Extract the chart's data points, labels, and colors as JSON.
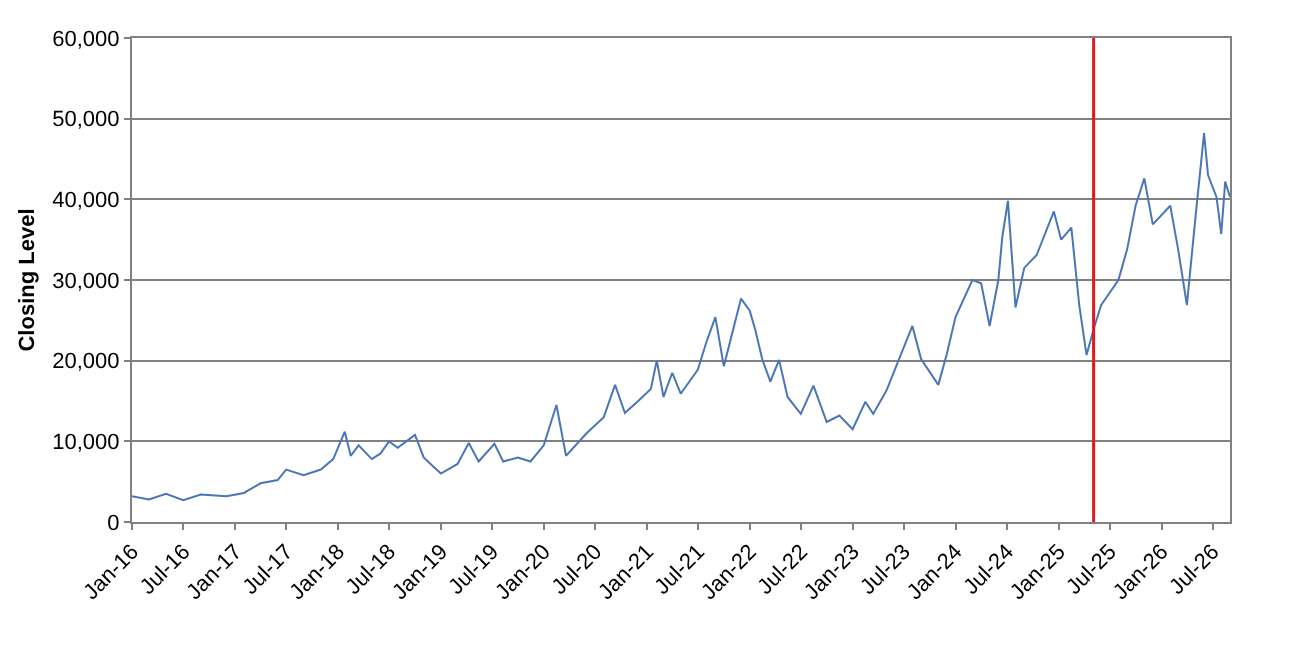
{
  "chart_data": {
    "type": "line",
    "ylabel": "Closing Level",
    "grid": "y",
    "marker": "none",
    "line_style": "solid",
    "x": [
      "2016-01-01",
      "2016-03-01",
      "2016-05-01",
      "2016-07-01",
      "2016-09-01",
      "2016-12-01",
      "2017-02-01",
      "2017-04-01",
      "2017-06-01",
      "2017-07-01",
      "2017-09-01",
      "2017-11-01",
      "2017-12-15",
      "2018-01-25",
      "2018-02-15",
      "2018-03-15",
      "2018-05-01",
      "2018-06-01",
      "2018-07-01",
      "2018-08-01",
      "2018-10-01",
      "2018-11-01",
      "2018-12-01",
      "2019-01-01",
      "2019-03-01",
      "2019-04-10",
      "2019-05-15",
      "2019-07-10",
      "2019-08-10",
      "2019-10-01",
      "2019-11-15",
      "2020-01-01",
      "2020-02-15",
      "2020-03-20",
      "2020-06-01",
      "2020-08-01",
      "2020-09-10",
      "2020-10-15",
      "2020-12-01",
      "2021-01-15",
      "2021-02-05",
      "2021-03-01",
      "2021-04-01",
      "2021-05-01",
      "2021-07-01",
      "2021-08-01",
      "2021-09-01",
      "2021-10-01",
      "2021-12-01",
      "2022-01-01",
      "2022-01-20",
      "2022-02-15",
      "2022-03-15",
      "2022-04-15",
      "2022-05-15",
      "2022-07-01",
      "2022-08-15",
      "2022-10-01",
      "2022-11-15",
      "2023-01-01",
      "2023-02-15",
      "2023-03-15",
      "2023-05-01",
      "2023-08-01",
      "2023-09-01",
      "2023-11-01",
      "2023-12-01",
      "2024-01-01",
      "2024-03-01",
      "2024-04-01",
      "2024-05-01",
      "2024-06-01",
      "2024-06-15",
      "2024-07-05",
      "2024-08-01",
      "2024-09-01",
      "2024-10-15",
      "2024-12-15",
      "2025-01-10",
      "2025-02-15",
      "2025-03-15",
      "2025-04-10",
      "2025-05-05",
      "2025-06-01",
      "2025-08-01",
      "2025-09-01",
      "2025-10-01",
      "2025-11-01",
      "2025-12-01",
      "2026-02-01",
      "2026-03-01",
      "2026-04-01",
      "2026-05-01",
      "2026-06-01",
      "2026-06-15",
      "2026-07-15",
      "2026-08-01",
      "2026-08-15",
      "2026-09-01"
    ],
    "series": [
      {
        "color": "#4a76b8",
        "values": [
          3200,
          2800,
          3500,
          2700,
          3400,
          3200,
          3600,
          4800,
          5200,
          6500,
          5800,
          6500,
          7800,
          11200,
          8200,
          9500,
          7800,
          8500,
          10000,
          9200,
          10800,
          8000,
          7000,
          6000,
          7200,
          9800,
          7500,
          9700,
          7500,
          8000,
          7500,
          9500,
          14500,
          8200,
          11000,
          13000,
          17000,
          13500,
          15000,
          16500,
          20000,
          15500,
          18500,
          15900,
          18900,
          22400,
          25400,
          19300,
          27700,
          26200,
          23900,
          20100,
          17400,
          20100,
          15500,
          13400,
          16900,
          12400,
          13200,
          11500,
          14900,
          13400,
          16300,
          24300,
          20200,
          17000,
          20800,
          25400,
          30000,
          29600,
          24300,
          30000,
          35300,
          39800,
          26600,
          31500,
          33100,
          38500,
          35000,
          36500,
          26900,
          20700,
          23900,
          26900,
          30000,
          33800,
          39200,
          42600,
          36900,
          39200,
          33800,
          26900,
          37600,
          48200,
          43000,
          40300,
          35700,
          42200,
          40300
        ]
      }
    ],
    "ylim": [
      0,
      60000
    ],
    "yticks": [
      {
        "value": 0,
        "label": "0"
      },
      {
        "value": 10000,
        "label": "10,000"
      },
      {
        "value": 20000,
        "label": "20,000"
      },
      {
        "value": 30000,
        "label": "30,000"
      },
      {
        "value": 40000,
        "label": "40,000"
      },
      {
        "value": 50000,
        "label": "50,000"
      },
      {
        "value": 60000,
        "label": "60,000"
      }
    ],
    "xlim": [
      "2016-01-01",
      "2026-09-01"
    ],
    "xticks": [
      {
        "value": "2016-01-01",
        "label": "Jan-16"
      },
      {
        "value": "2016-07-01",
        "label": "Jul-16"
      },
      {
        "value": "2017-01-01",
        "label": "Jan-17"
      },
      {
        "value": "2017-07-01",
        "label": "Jul-17"
      },
      {
        "value": "2018-01-01",
        "label": "Jan-18"
      },
      {
        "value": "2018-07-01",
        "label": "Jul-18"
      },
      {
        "value": "2019-01-01",
        "label": "Jan-19"
      },
      {
        "value": "2019-07-01",
        "label": "Jul-19"
      },
      {
        "value": "2020-01-01",
        "label": "Jan-20"
      },
      {
        "value": "2020-07-01",
        "label": "Jul-20"
      },
      {
        "value": "2021-01-01",
        "label": "Jan-21"
      },
      {
        "value": "2021-07-01",
        "label": "Jul-21"
      },
      {
        "value": "2022-01-01",
        "label": "Jan-22"
      },
      {
        "value": "2022-07-01",
        "label": "Jul-22"
      },
      {
        "value": "2023-01-01",
        "label": "Jan-23"
      },
      {
        "value": "2023-07-01",
        "label": "Jul-23"
      },
      {
        "value": "2024-01-01",
        "label": "Jan-24"
      },
      {
        "value": "2024-07-01",
        "label": "Jul-24"
      },
      {
        "value": "2025-01-01",
        "label": "Jan-25"
      },
      {
        "value": "2025-07-01",
        "label": "Jul-25"
      },
      {
        "value": "2026-01-01",
        "label": "Jan-26"
      },
      {
        "value": "2026-07-01",
        "label": "Jul-26"
      }
    ],
    "ref_lines": [
      {
        "axis": "x",
        "value": "2025-05-05",
        "color": "#e31a1c",
        "line_style": "solid"
      }
    ]
  }
}
